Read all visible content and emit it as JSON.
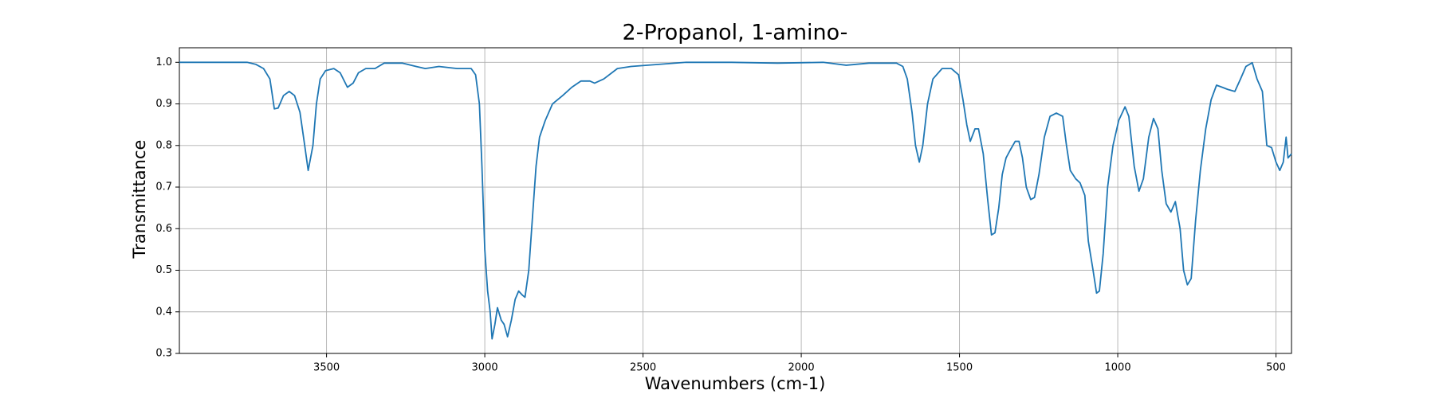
{
  "chart_data": {
    "type": "line",
    "title": "2-Propanol, 1-amino-",
    "x_label": "Wavenumbers (cm-1)",
    "y_label": "Transmittance",
    "x": [
      3965,
      3867,
      3751,
      3723,
      3699,
      3679,
      3673,
      3665,
      3653,
      3636,
      3618,
      3601,
      3584,
      3569,
      3558,
      3543,
      3532,
      3520,
      3503,
      3477,
      3457,
      3434,
      3416,
      3399,
      3376,
      3347,
      3318,
      3260,
      3217,
      3188,
      3145,
      3087,
      3043,
      3029,
      3017,
      3009,
      3000,
      2991,
      2983,
      2977,
      2968,
      2960,
      2948,
      2939,
      2928,
      2916,
      2904,
      2893,
      2881,
      2873,
      2861,
      2850,
      2838,
      2827,
      2809,
      2786,
      2754,
      2725,
      2696,
      2668,
      2653,
      2624,
      2581,
      2538,
      2451,
      2364,
      2220,
      2075,
      1931,
      1858,
      1786,
      1699,
      1679,
      1665,
      1650,
      1639,
      1627,
      1616,
      1601,
      1584,
      1555,
      1526,
      1503,
      1489,
      1477,
      1466,
      1451,
      1440,
      1425,
      1411,
      1399,
      1388,
      1376,
      1365,
      1353,
      1339,
      1324,
      1312,
      1301,
      1289,
      1275,
      1263,
      1249,
      1232,
      1214,
      1194,
      1174,
      1162,
      1150,
      1133,
      1119,
      1104,
      1093,
      1078,
      1067,
      1058,
      1046,
      1032,
      1015,
      997,
      977,
      965,
      948,
      933,
      919,
      902,
      887,
      873,
      861,
      847,
      832,
      818,
      803,
      792,
      780,
      768,
      754,
      739,
      722,
      705,
      688,
      670,
      653,
      630,
      612,
      595,
      575,
      560,
      543,
      529,
      514,
      500,
      488,
      477,
      468,
      462,
      451
    ],
    "series": [
      {
        "name": "2-Propanol, 1-amino-",
        "color": "#1f77b4",
        "values": [
          1.0,
          1.0,
          1.0,
          0.995,
          0.985,
          0.96,
          0.93,
          0.888,
          0.89,
          0.92,
          0.93,
          0.92,
          0.88,
          0.8,
          0.74,
          0.8,
          0.9,
          0.96,
          0.98,
          0.985,
          0.975,
          0.94,
          0.95,
          0.975,
          0.985,
          0.985,
          0.998,
          0.998,
          0.99,
          0.985,
          0.99,
          0.985,
          0.985,
          0.97,
          0.9,
          0.75,
          0.55,
          0.45,
          0.4,
          0.335,
          0.37,
          0.41,
          0.38,
          0.37,
          0.34,
          0.38,
          0.43,
          0.45,
          0.44,
          0.435,
          0.5,
          0.62,
          0.75,
          0.82,
          0.86,
          0.9,
          0.92,
          0.94,
          0.955,
          0.955,
          0.95,
          0.96,
          0.985,
          0.99,
          0.995,
          1.0,
          1.0,
          0.998,
          1.0,
          0.993,
          0.998,
          0.998,
          0.99,
          0.96,
          0.88,
          0.8,
          0.76,
          0.8,
          0.9,
          0.96,
          0.985,
          0.985,
          0.97,
          0.91,
          0.85,
          0.81,
          0.84,
          0.84,
          0.78,
          0.67,
          0.585,
          0.59,
          0.65,
          0.73,
          0.77,
          0.79,
          0.81,
          0.81,
          0.77,
          0.7,
          0.67,
          0.675,
          0.73,
          0.82,
          0.87,
          0.878,
          0.87,
          0.8,
          0.74,
          0.72,
          0.71,
          0.68,
          0.57,
          0.5,
          0.445,
          0.45,
          0.54,
          0.7,
          0.8,
          0.86,
          0.893,
          0.87,
          0.75,
          0.69,
          0.72,
          0.82,
          0.865,
          0.84,
          0.74,
          0.66,
          0.64,
          0.665,
          0.6,
          0.5,
          0.465,
          0.48,
          0.62,
          0.74,
          0.84,
          0.91,
          0.945,
          0.94,
          0.935,
          0.93,
          0.96,
          0.99,
          0.999,
          0.96,
          0.93,
          0.8,
          0.795,
          0.76,
          0.74,
          0.76,
          0.82,
          0.77,
          0.78
        ]
      }
    ],
    "xlim": [
      3965,
      451
    ],
    "ylim": [
      0.3,
      1.035
    ],
    "xticks": [
      3500,
      3000,
      2500,
      2000,
      1500,
      1000,
      500
    ],
    "yticks": [
      0.3,
      0.4,
      0.5,
      0.6,
      0.7,
      0.8,
      0.9,
      {
        "value": 1,
        "label": "1.0"
      }
    ],
    "grid": true
  }
}
